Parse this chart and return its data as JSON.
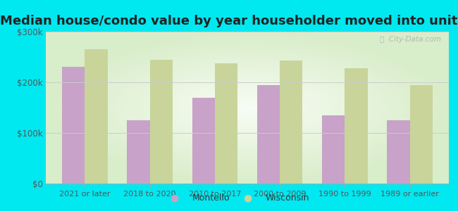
{
  "title": "Median house/condo value by year householder moved into unit",
  "categories": [
    "2021 or later",
    "2018 to 2020",
    "2010 to 2017",
    "2000 to 2009",
    "1990 to 1999",
    "1989 or earlier"
  ],
  "montello": [
    230000,
    125000,
    170000,
    195000,
    135000,
    125000
  ],
  "wisconsin": [
    265000,
    245000,
    238000,
    243000,
    228000,
    195000
  ],
  "montello_color": "#c8a2c8",
  "wisconsin_color": "#c8d49a",
  "background_outer": "#00e8f0",
  "background_inner_center": "#f5fbf0",
  "background_inner_edge": "#d8edc8",
  "ylim": [
    0,
    300000
  ],
  "yticks": [
    0,
    100000,
    200000,
    300000
  ],
  "ylabel_labels": [
    "$0",
    "$100k",
    "$200k",
    "$300k"
  ],
  "legend_montello": "Montello",
  "legend_wisconsin": "Wisconsin",
  "bar_width": 0.35,
  "title_fontsize": 13,
  "title_color": "#222222",
  "tick_color": "#555555",
  "grid_color": "#cccccc",
  "watermark_color": "#b0b8b8"
}
